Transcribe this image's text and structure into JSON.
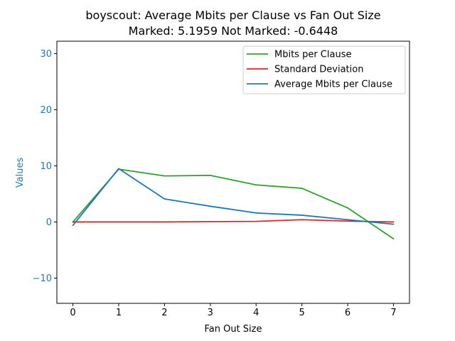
{
  "chart_data": {
    "type": "line",
    "title": "boyscout: Average Mbits per Clause vs Fan Out Size",
    "subtitle": "Marked: 5.1959 Not Marked: -0.6448",
    "xlabel": "Fan Out Size",
    "ylabel": "Values",
    "ylabel_color": "#1f77b4",
    "xlim": [
      -0.35,
      7.35
    ],
    "ylim": [
      -14.5,
      32.2
    ],
    "x": [
      0,
      1,
      2,
      3,
      4,
      5,
      6,
      7
    ],
    "x_ticks": [
      "0",
      "1",
      "2",
      "3",
      "4",
      "5",
      "6",
      "7"
    ],
    "y_ticks": [
      -10,
      0,
      10,
      20,
      30
    ],
    "y_tick_labels": [
      "−10",
      "0",
      "10",
      "20",
      "30"
    ],
    "grid": false,
    "legend_position": "top-right",
    "series": [
      {
        "name": "Mbits per Clause",
        "color": "#2ca02c",
        "values": [
          0.0,
          9.4,
          8.2,
          8.3,
          6.6,
          6.0,
          2.5,
          -3.0
        ]
      },
      {
        "name": "Standard Deviation",
        "color": "#d62728",
        "values": [
          0.0,
          0.0,
          0.0,
          0.05,
          0.1,
          0.4,
          0.15,
          0.0
        ]
      },
      {
        "name": "Average Mbits per Clause",
        "color": "#1f77b4",
        "values": [
          -0.6,
          9.5,
          4.1,
          2.8,
          1.6,
          1.2,
          0.4,
          -0.4
        ]
      }
    ]
  }
}
